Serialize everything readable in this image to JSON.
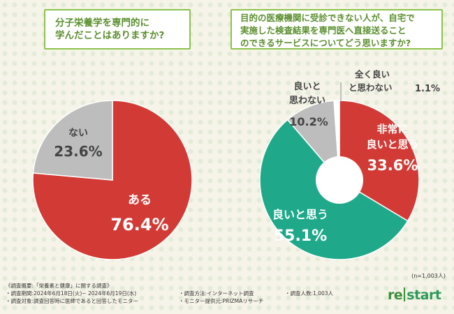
{
  "questions": {
    "q1_line1": "分子栄養学を専門的に",
    "q1_line2": "学んだことはありますか?",
    "q2_line1": "目的の医療機関に受診できない人が、自宅で",
    "q2_line2": "実施した検査結果を専門医へ直接送ること",
    "q2_line3": "のできるサービスについてどう思いますか?"
  },
  "chart_data": [
    {
      "type": "pie",
      "title": "分子栄養学を専門的に学んだことはありますか?",
      "slices": [
        {
          "label": "ある",
          "value": 76.4,
          "display": "76.4%",
          "color": "#d23b35"
        },
        {
          "label": "ない",
          "value": 23.6,
          "display": "23.6%",
          "color": "#bdbdbd"
        }
      ]
    },
    {
      "type": "pie",
      "title": "目的の医療機関に受診できない人が、自宅で実施した検査結果を専門医へ直接送ることのできるサービスについてどう思いますか?",
      "slices": [
        {
          "label": "非常に良いと思う",
          "label_line1": "非常に",
          "label_line2": "良いと思う",
          "value": 33.6,
          "display": "33.6%",
          "color": "#d23b35"
        },
        {
          "label": "良いと思う",
          "value": 55.1,
          "display": "55.1%",
          "color": "#1fa98a"
        },
        {
          "label": "良いと思わない",
          "label_line1": "良いと",
          "label_line2": "思わない",
          "value": 10.2,
          "display": "10.2%",
          "color": "#bdbdbd"
        },
        {
          "label": "全く良いと思わない",
          "label_line1": "全く良い",
          "label_line2": "と思わない",
          "value": 1.1,
          "display": "1.1%",
          "color": "#ffffff"
        }
      ],
      "sample_size": "(n=1,003人)"
    }
  ],
  "footer": {
    "overview": "《調査概要:「栄養素と健康」に関する調査》",
    "period": "・調査期間:2024年6月18日(火)~ 2024年6月19日(水)",
    "method": "・調査方法:インターネット調査",
    "count": "・調査人数:1,003人",
    "target": "・調査対象:調査回答時に医師であると回答したモニター",
    "provider": "・モニター提供元:PRIZMAリサーチ"
  },
  "logo": {
    "part1": "re",
    "part2": "start"
  }
}
